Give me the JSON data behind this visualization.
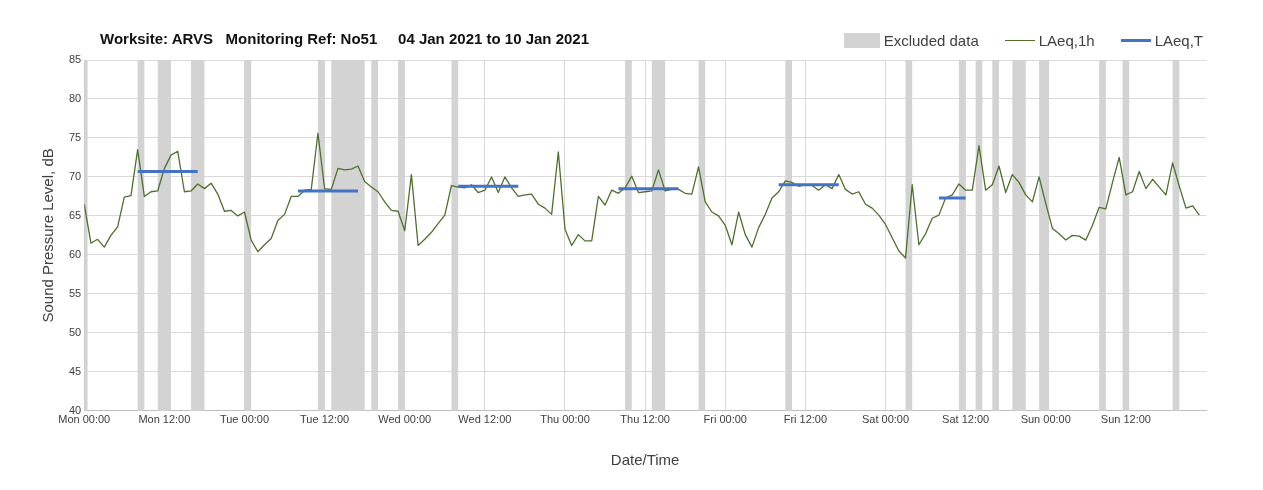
{
  "chart_data": {
    "type": "line",
    "title": "Worksite: ARVS   Monitoring Ref: No51     04 Jan 2021 to 10 Jan 2021",
    "xlabel": "Date/Time",
    "ylabel": "Sound Pressure Level, dB",
    "xlim": [
      "2021-01-04T00:00",
      "2021-01-11T00:00"
    ],
    "ylim": [
      40,
      85
    ],
    "xticks": [
      {
        "value": "2021-01-04T00:00",
        "label": "Mon 00:00"
      },
      {
        "value": "2021-01-04T12:00",
        "label": "Mon 12:00"
      },
      {
        "value": "2021-01-05T00:00",
        "label": "Tue 00:00"
      },
      {
        "value": "2021-01-05T12:00",
        "label": "Tue 12:00"
      },
      {
        "value": "2021-01-06T00:00",
        "label": "Wed 00:00"
      },
      {
        "value": "2021-01-06T12:00",
        "label": "Wed 12:00"
      },
      {
        "value": "2021-01-07T00:00",
        "label": "Thu 00:00"
      },
      {
        "value": "2021-01-07T12:00",
        "label": "Thu 12:00"
      },
      {
        "value": "2021-01-08T00:00",
        "label": "Fri 00:00"
      },
      {
        "value": "2021-01-08T12:00",
        "label": "Fri 12:00"
      },
      {
        "value": "2021-01-09T00:00",
        "label": "Sat 00:00"
      },
      {
        "value": "2021-01-09T12:00",
        "label": "Sat 12:00"
      },
      {
        "value": "2021-01-10T00:00",
        "label": "Sun 00:00"
      },
      {
        "value": "2021-01-10T12:00",
        "label": "Sun 12:00"
      }
    ],
    "yticks": [
      40,
      45,
      50,
      55,
      60,
      65,
      70,
      75,
      80,
      85
    ],
    "grid": true,
    "legend": "top right",
    "marker": "none",
    "series": [
      {
        "name": "LAeq,1h",
        "color": "#4f6f2f",
        "x": [
          "2021-01-04T00:00",
          "2021-01-04T01:00",
          "2021-01-04T02:00",
          "2021-01-04T03:00",
          "2021-01-04T04:00",
          "2021-01-04T05:00",
          "2021-01-04T06:00",
          "2021-01-04T07:00",
          "2021-01-04T08:00",
          "2021-01-04T09:00",
          "2021-01-04T10:00",
          "2021-01-04T11:00",
          "2021-01-04T12:00",
          "2021-01-04T13:00",
          "2021-01-04T14:00",
          "2021-01-04T15:00",
          "2021-01-04T16:00",
          "2021-01-04T17:00",
          "2021-01-04T18:00",
          "2021-01-04T19:00",
          "2021-01-04T20:00",
          "2021-01-04T21:00",
          "2021-01-04T22:00",
          "2021-01-04T23:00",
          "2021-01-05T00:00",
          "2021-01-05T01:00",
          "2021-01-05T02:00",
          "2021-01-05T03:00",
          "2021-01-05T04:00",
          "2021-01-05T05:00",
          "2021-01-05T06:00",
          "2021-01-05T07:00",
          "2021-01-05T08:00",
          "2021-01-05T09:00",
          "2021-01-05T10:00",
          "2021-01-05T11:00",
          "2021-01-05T12:00",
          "2021-01-05T13:00",
          "2021-01-05T14:00",
          "2021-01-05T15:00",
          "2021-01-05T16:00",
          "2021-01-05T17:00",
          "2021-01-05T18:00",
          "2021-01-05T19:00",
          "2021-01-05T20:00",
          "2021-01-05T21:00",
          "2021-01-05T22:00",
          "2021-01-05T23:00",
          "2021-01-06T00:00",
          "2021-01-06T01:00",
          "2021-01-06T02:00",
          "2021-01-06T03:00",
          "2021-01-06T04:00",
          "2021-01-06T05:00",
          "2021-01-06T06:00",
          "2021-01-06T07:00",
          "2021-01-06T08:00",
          "2021-01-06T09:00",
          "2021-01-06T10:00",
          "2021-01-06T11:00",
          "2021-01-06T12:00",
          "2021-01-06T13:00",
          "2021-01-06T14:00",
          "2021-01-06T15:00",
          "2021-01-06T16:00",
          "2021-01-06T17:00",
          "2021-01-06T18:00",
          "2021-01-06T19:00",
          "2021-01-06T20:00",
          "2021-01-06T21:00",
          "2021-01-06T22:00",
          "2021-01-06T23:00",
          "2021-01-07T00:00",
          "2021-01-07T01:00",
          "2021-01-07T02:00",
          "2021-01-07T03:00",
          "2021-01-07T04:00",
          "2021-01-07T05:00",
          "2021-01-07T06:00",
          "2021-01-07T07:00",
          "2021-01-07T08:00",
          "2021-01-07T09:00",
          "2021-01-07T10:00",
          "2021-01-07T11:00",
          "2021-01-07T12:00",
          "2021-01-07T13:00",
          "2021-01-07T14:00",
          "2021-01-07T15:00",
          "2021-01-07T16:00",
          "2021-01-07T17:00",
          "2021-01-07T18:00",
          "2021-01-07T19:00",
          "2021-01-07T20:00",
          "2021-01-07T21:00",
          "2021-01-07T22:00",
          "2021-01-07T23:00",
          "2021-01-08T00:00",
          "2021-01-08T01:00",
          "2021-01-08T02:00",
          "2021-01-08T03:00",
          "2021-01-08T04:00",
          "2021-01-08T05:00",
          "2021-01-08T06:00",
          "2021-01-08T07:00",
          "2021-01-08T08:00",
          "2021-01-08T09:00",
          "2021-01-08T10:00",
          "2021-01-08T11:00",
          "2021-01-08T12:00",
          "2021-01-08T13:00",
          "2021-01-08T14:00",
          "2021-01-08T15:00",
          "2021-01-08T16:00",
          "2021-01-08T17:00",
          "2021-01-08T18:00",
          "2021-01-08T19:00",
          "2021-01-08T20:00",
          "2021-01-08T21:00",
          "2021-01-08T22:00",
          "2021-01-08T23:00",
          "2021-01-09T00:00",
          "2021-01-09T01:00",
          "2021-01-09T02:00",
          "2021-01-09T03:00",
          "2021-01-09T04:00",
          "2021-01-09T05:00",
          "2021-01-09T06:00",
          "2021-01-09T07:00",
          "2021-01-09T08:00",
          "2021-01-09T09:00",
          "2021-01-09T10:00",
          "2021-01-09T11:00",
          "2021-01-09T12:00",
          "2021-01-09T13:00",
          "2021-01-09T14:00",
          "2021-01-09T15:00",
          "2021-01-09T16:00",
          "2021-01-09T17:00",
          "2021-01-09T18:00",
          "2021-01-09T19:00",
          "2021-01-09T20:00",
          "2021-01-09T21:00",
          "2021-01-09T22:00",
          "2021-01-09T23:00",
          "2021-01-10T00:00",
          "2021-01-10T01:00",
          "2021-01-10T02:00",
          "2021-01-10T03:00",
          "2021-01-10T04:00",
          "2021-01-10T05:00",
          "2021-01-10T06:00",
          "2021-01-10T07:00",
          "2021-01-10T08:00",
          "2021-01-10T09:00",
          "2021-01-10T10:00",
          "2021-01-10T11:00",
          "2021-01-10T12:00",
          "2021-01-10T13:00",
          "2021-01-10T14:00",
          "2021-01-10T15:00",
          "2021-01-10T16:00",
          "2021-01-10T17:00",
          "2021-01-10T18:00",
          "2021-01-10T19:00",
          "2021-01-10T20:00",
          "2021-01-10T21:00",
          "2021-01-10T22:00",
          "2021-01-10T23:00"
        ],
        "values": [
          66.5,
          61.5,
          62,
          61,
          62.5,
          63.6,
          67.4,
          67.6,
          73.5,
          67.5,
          68.1,
          68.2,
          71.1,
          72.8,
          73.3,
          68.1,
          68.2,
          69.1,
          68.5,
          69.2,
          67.8,
          65.6,
          65.7,
          65,
          65.5,
          61.9,
          60.4,
          61.3,
          62.1,
          64.4,
          65.2,
          67.5,
          67.5,
          68.3,
          68.4,
          75.6,
          68.5,
          68.4,
          71.1,
          70.9,
          71,
          71.4,
          69.4,
          68.7,
          68.1,
          66.8,
          65.7,
          65.6,
          63.1,
          70.3,
          61.2,
          62,
          62.9,
          64,
          65.1,
          68.9,
          68.7,
          68.6,
          69,
          68,
          68.3,
          70,
          68,
          70,
          68.6,
          67.5,
          67.7,
          67.8,
          66.5,
          66,
          65.2,
          73.2,
          63.3,
          61.2,
          62.6,
          61.8,
          61.8,
          67.5,
          66.4,
          68.3,
          67.9,
          68.6,
          70.1,
          68,
          68.1,
          68.2,
          70.9,
          68.2,
          68.4,
          68.4,
          67.9,
          67.8,
          71.3,
          66.8,
          65.5,
          65,
          63.8,
          61.3,
          65.5,
          62.6,
          61,
          63.5,
          65.2,
          67.3,
          68.1,
          69.5,
          69.3,
          68.8,
          69,
          68.9,
          68.3,
          69,
          68.5,
          70.3,
          68.4,
          67.8,
          68.1,
          66.5,
          66,
          65.1,
          63.9,
          62.2,
          60.5,
          59.6,
          69,
          61.3,
          62.7,
          64.7,
          65.1,
          67.3,
          67.7,
          69.1,
          68.3,
          68.3,
          74,
          68.3,
          69,
          71.4,
          68,
          70.3,
          69.3,
          67.7,
          66.8,
          70,
          66.6,
          63.4,
          62.7,
          61.9,
          62.5,
          62.4,
          61.9,
          63.8,
          66.1,
          65.9,
          69.3,
          72.5,
          67.7,
          68.1,
          70.7,
          68.5,
          69.7,
          68.7,
          67.7,
          71.8,
          68.8,
          66,
          66.3,
          65.1
        ]
      },
      {
        "name": "LAeq,T",
        "color": "#4472c4",
        "x": [
          "2021-01-04T08:00",
          "2021-01-04T17:00",
          "2021-01-05T00:00",
          "2021-01-05T08:00",
          "2021-01-05T17:00",
          "2021-01-06T00:00",
          "2021-01-06T08:00",
          "2021-01-06T17:00",
          "2021-01-07T00:00",
          "2021-01-07T08:00",
          "2021-01-07T17:00",
          "2021-01-08T00:00",
          "2021-01-08T08:00",
          "2021-01-08T17:00",
          "2021-01-09T00:00",
          "2021-01-09T08:00",
          "2021-01-09T12:00"
        ],
        "values": [
          70.7,
          70.7,
          null,
          68.2,
          68.2,
          null,
          68.8,
          68.8,
          null,
          68.5,
          68.5,
          null,
          69,
          69,
          null,
          67.3,
          67.3
        ]
      }
    ],
    "bands": [
      {
        "axis": "x",
        "from": "2021-01-04T00:00",
        "to": "2021-01-04T00:30",
        "label": "Excluded data",
        "color": "#d3d3d3"
      },
      {
        "axis": "x",
        "from": "2021-01-04T08:00",
        "to": "2021-01-04T09:00",
        "color": "#d3d3d3"
      },
      {
        "axis": "x",
        "from": "2021-01-04T11:00",
        "to": "2021-01-04T13:00",
        "color": "#d3d3d3"
      },
      {
        "axis": "x",
        "from": "2021-01-04T16:00",
        "to": "2021-01-04T18:00",
        "color": "#d3d3d3"
      },
      {
        "axis": "x",
        "from": "2021-01-05T00:00",
        "to": "2021-01-05T01:00",
        "color": "#d3d3d3"
      },
      {
        "axis": "x",
        "from": "2021-01-05T11:00",
        "to": "2021-01-05T12:00",
        "color": "#d3d3d3"
      },
      {
        "axis": "x",
        "from": "2021-01-05T13:00",
        "to": "2021-01-05T18:00",
        "color": "#d3d3d3"
      },
      {
        "axis": "x",
        "from": "2021-01-05T19:00",
        "to": "2021-01-05T20:00",
        "color": "#d3d3d3"
      },
      {
        "axis": "x",
        "from": "2021-01-05T23:00",
        "to": "2021-01-06T00:00",
        "color": "#d3d3d3"
      },
      {
        "axis": "x",
        "from": "2021-01-06T07:00",
        "to": "2021-01-06T08:00",
        "color": "#d3d3d3"
      },
      {
        "axis": "x",
        "from": "2021-01-07T09:00",
        "to": "2021-01-07T10:00",
        "color": "#d3d3d3"
      },
      {
        "axis": "x",
        "from": "2021-01-07T13:00",
        "to": "2021-01-07T15:00",
        "color": "#d3d3d3"
      },
      {
        "axis": "x",
        "from": "2021-01-07T20:00",
        "to": "2021-01-07T21:00",
        "color": "#d3d3d3"
      },
      {
        "axis": "x",
        "from": "2021-01-08T09:00",
        "to": "2021-01-08T10:00",
        "color": "#d3d3d3"
      },
      {
        "axis": "x",
        "from": "2021-01-09T03:00",
        "to": "2021-01-09T04:00",
        "color": "#d3d3d3"
      },
      {
        "axis": "x",
        "from": "2021-01-09T11:00",
        "to": "2021-01-09T12:00",
        "color": "#d3d3d3"
      },
      {
        "axis": "x",
        "from": "2021-01-09T13:30",
        "to": "2021-01-09T14:30",
        "color": "#d3d3d3"
      },
      {
        "axis": "x",
        "from": "2021-01-09T16:00",
        "to": "2021-01-09T17:00",
        "color": "#d3d3d3"
      },
      {
        "axis": "x",
        "from": "2021-01-09T19:00",
        "to": "2021-01-09T21:00",
        "color": "#d3d3d3"
      },
      {
        "axis": "x",
        "from": "2021-01-09T23:00",
        "to": "2021-01-10T00:30",
        "color": "#d3d3d3"
      },
      {
        "axis": "x",
        "from": "2021-01-10T08:00",
        "to": "2021-01-10T09:00",
        "color": "#d3d3d3"
      },
      {
        "axis": "x",
        "from": "2021-01-10T11:30",
        "to": "2021-01-10T12:30",
        "color": "#d3d3d3"
      },
      {
        "axis": "x",
        "from": "2021-01-10T19:00",
        "to": "2021-01-10T20:00",
        "color": "#d3d3d3"
      }
    ]
  }
}
